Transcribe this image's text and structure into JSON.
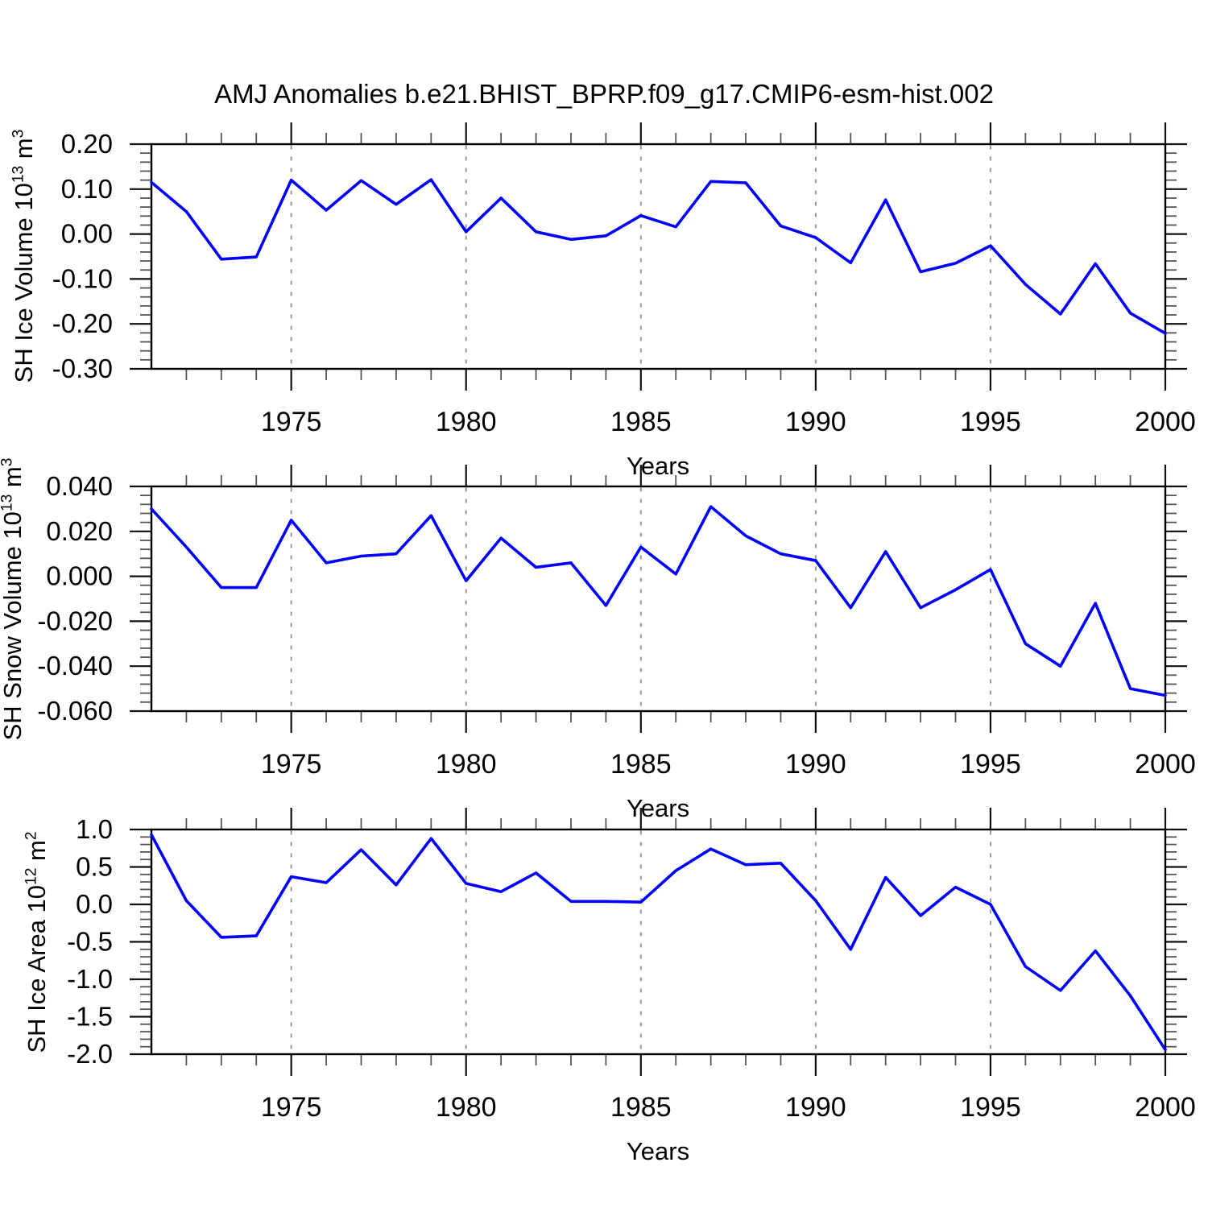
{
  "title": "AMJ Anomalies b.e21.BHIST_BPRP.f09_g17.CMIP6-esm-hist.002",
  "colors": {
    "line": "#0000ff",
    "grid": "#999999",
    "axis": "#000000",
    "major_tick": "#111111",
    "minor_tick": "#555555",
    "text": "#000000",
    "background": "#ffffff"
  },
  "x_axis": {
    "label": "Years",
    "start": 1971,
    "end": 2000,
    "minor_step": 1,
    "major_ticks": [
      1975,
      1980,
      1985,
      1990,
      1995,
      2000
    ],
    "major_tick_labels": [
      "1975",
      "1980",
      "1985",
      "1990",
      "1995",
      "2000"
    ],
    "grid_years": [
      1975,
      1980,
      1985,
      1990,
      1995
    ]
  },
  "ylabels": [
    {
      "prefix": "SH Ice Volume 10",
      "exp": "13",
      "unit": " m",
      "unit_exp": "3"
    },
    {
      "prefix": "SH Snow Volume 10",
      "exp": "13",
      "unit": " m",
      "unit_exp": "3"
    },
    {
      "prefix": "SH Ice Area 10",
      "exp": "12",
      "unit": " m",
      "unit_exp": "2"
    }
  ],
  "chart_data": [
    {
      "type": "line",
      "id": "sh-ice-volume",
      "name": "SH Ice Volume 10^13 m^3",
      "xlabel": "Years",
      "x_start": 1971,
      "x_end": 2000,
      "ylim": [
        -0.3,
        0.2
      ],
      "ytick_values": [
        0.2,
        0.1,
        0.0,
        -0.1,
        -0.2,
        -0.3
      ],
      "ytick_labels": [
        "0.20",
        "0.10",
        "0.00",
        "-0.10",
        "-0.20",
        "-0.30"
      ],
      "y_minor_step": 0.02,
      "grid": "vertical-dashed",
      "legend": "none",
      "values": [
        0.115,
        0.05,
        -0.056,
        -0.051,
        0.12,
        0.053,
        0.119,
        0.066,
        0.121,
        0.005,
        0.08,
        0.005,
        -0.012,
        -0.004,
        0.041,
        0.016,
        0.117,
        0.114,
        0.018,
        -0.008,
        -0.064,
        0.076,
        -0.084,
        -0.065,
        -0.026,
        -0.112,
        -0.178,
        -0.066,
        -0.176,
        -0.221
      ]
    },
    {
      "type": "line",
      "id": "sh-snow-volume",
      "name": "SH Snow Volume 10^13 m^3",
      "xlabel": "Years",
      "x_start": 1971,
      "x_end": 2000,
      "ylim": [
        -0.06,
        0.04
      ],
      "ytick_values": [
        0.04,
        0.02,
        0.0,
        -0.02,
        -0.04,
        -0.06
      ],
      "ytick_labels": [
        "0.040",
        "0.020",
        "0.000",
        "-0.020",
        "-0.040",
        "-0.060"
      ],
      "y_minor_step": 0.004,
      "grid": "vertical-dashed",
      "legend": "none",
      "values": [
        0.03,
        0.013,
        -0.005,
        -0.005,
        0.025,
        0.006,
        0.009,
        0.01,
        0.027,
        -0.002,
        0.017,
        0.004,
        0.006,
        -0.013,
        0.013,
        0.001,
        0.031,
        0.018,
        0.01,
        0.007,
        -0.014,
        0.011,
        -0.014,
        -0.006,
        0.003,
        -0.03,
        -0.04,
        -0.012,
        -0.05,
        -0.053
      ]
    },
    {
      "type": "line",
      "id": "sh-ice-area",
      "name": "SH Ice Area 10^12 m^2",
      "xlabel": "Years",
      "x_start": 1971,
      "x_end": 2000,
      "ylim": [
        -2.0,
        1.0
      ],
      "ytick_values": [
        1.0,
        0.5,
        0.0,
        -0.5,
        -1.0,
        -1.5,
        -2.0
      ],
      "ytick_labels": [
        "1.0",
        "0.5",
        "0.0",
        "-0.5",
        "-1.0",
        "-1.5",
        "-2.0"
      ],
      "y_minor_step": 0.1,
      "grid": "vertical-dashed",
      "legend": "none",
      "values": [
        0.93,
        0.05,
        -0.44,
        -0.42,
        0.37,
        0.29,
        0.73,
        0.26,
        0.88,
        0.28,
        0.17,
        0.42,
        0.04,
        0.04,
        0.03,
        0.45,
        0.74,
        0.53,
        0.55,
        0.05,
        -0.6,
        0.36,
        -0.15,
        0.23,
        0.0,
        -0.83,
        -1.15,
        -0.62,
        -1.22,
        -1.94
      ]
    }
  ]
}
